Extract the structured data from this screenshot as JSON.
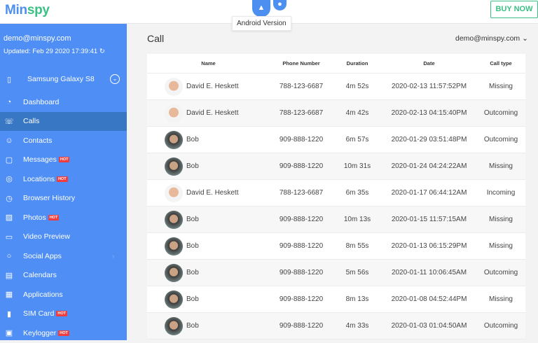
{
  "header": {
    "logo_a": "Min",
    "logo_b": "spy",
    "android_tooltip": "Android Version",
    "buy_now": "BUY NOW"
  },
  "sidebar": {
    "email": "demo@minspy.com",
    "updated": "Updated: Feb 29 2020 17:39:41",
    "device": "Samsung Galaxy S8",
    "items": [
      {
        "label": "Dashboard",
        "icon": "dashboard-icon",
        "glyph": "◔",
        "hot": false
      },
      {
        "label": "Calls",
        "icon": "phone-icon",
        "glyph": "☏",
        "hot": false,
        "active": true
      },
      {
        "label": "Contacts",
        "icon": "contacts-icon",
        "glyph": "☺",
        "hot": false
      },
      {
        "label": "Messages",
        "icon": "message-icon",
        "glyph": "▢",
        "hot": true
      },
      {
        "label": "Locations",
        "icon": "location-icon",
        "glyph": "◎",
        "hot": true
      },
      {
        "label": "Browser History",
        "icon": "clock-icon",
        "glyph": "◷",
        "hot": false
      },
      {
        "label": "Photos",
        "icon": "image-icon",
        "glyph": "▨",
        "hot": true
      },
      {
        "label": "Video Preview",
        "icon": "video-icon",
        "glyph": "▭",
        "hot": false
      },
      {
        "label": "Social Apps",
        "icon": "chat-icon",
        "glyph": "○",
        "hot": false,
        "chevron": true
      },
      {
        "label": "Calendars",
        "icon": "calendar-icon",
        "glyph": "▤",
        "hot": false
      },
      {
        "label": "Applications",
        "icon": "apps-icon",
        "glyph": "▦",
        "hot": false
      },
      {
        "label": "SIM Card",
        "icon": "sim-icon",
        "glyph": "▮",
        "hot": true
      },
      {
        "label": "Keylogger",
        "icon": "keyboard-icon",
        "glyph": "▣",
        "hot": true
      }
    ],
    "hot_label": "HOT"
  },
  "main": {
    "title": "Call",
    "user": "demo@minspy.com"
  },
  "table": {
    "columns": [
      "Name",
      "Phone Number",
      "Duration",
      "Date",
      "Call type"
    ],
    "rows": [
      [
        "David E. Heskett",
        "788-123-6687",
        "4m 52s",
        "2020-02-13 11:57:52PM",
        "Missing"
      ],
      [
        "David E. Heskett",
        "788-123-6687",
        "4m 42s",
        "2020-02-13 04:15:40PM",
        "Outcoming"
      ],
      [
        "Bob",
        "909-888-1220",
        "6m 57s",
        "2020-01-29 03:51:48PM",
        "Outcoming"
      ],
      [
        "Bob",
        "909-888-1220",
        "10m 31s",
        "2020-01-24 04:24:22AM",
        "Missing"
      ],
      [
        "David E. Heskett",
        "788-123-6687",
        "6m 35s",
        "2020-01-17 06:44:12AM",
        "Incoming"
      ],
      [
        "Bob",
        "909-888-1220",
        "10m 13s",
        "2020-01-15 11:57:15AM",
        "Missing"
      ],
      [
        "Bob",
        "909-888-1220",
        "8m 55s",
        "2020-01-13 06:15:29PM",
        "Missing"
      ],
      [
        "Bob",
        "909-888-1220",
        "5m 56s",
        "2020-01-11 10:06:45AM",
        "Outcoming"
      ],
      [
        "Bob",
        "909-888-1220",
        "8m 13s",
        "2020-01-08 04:52:44PM",
        "Missing"
      ],
      [
        "Bob",
        "909-888-1220",
        "4m 33s",
        "2020-01-03 01:04:50AM",
        "Outcoming"
      ]
    ]
  }
}
